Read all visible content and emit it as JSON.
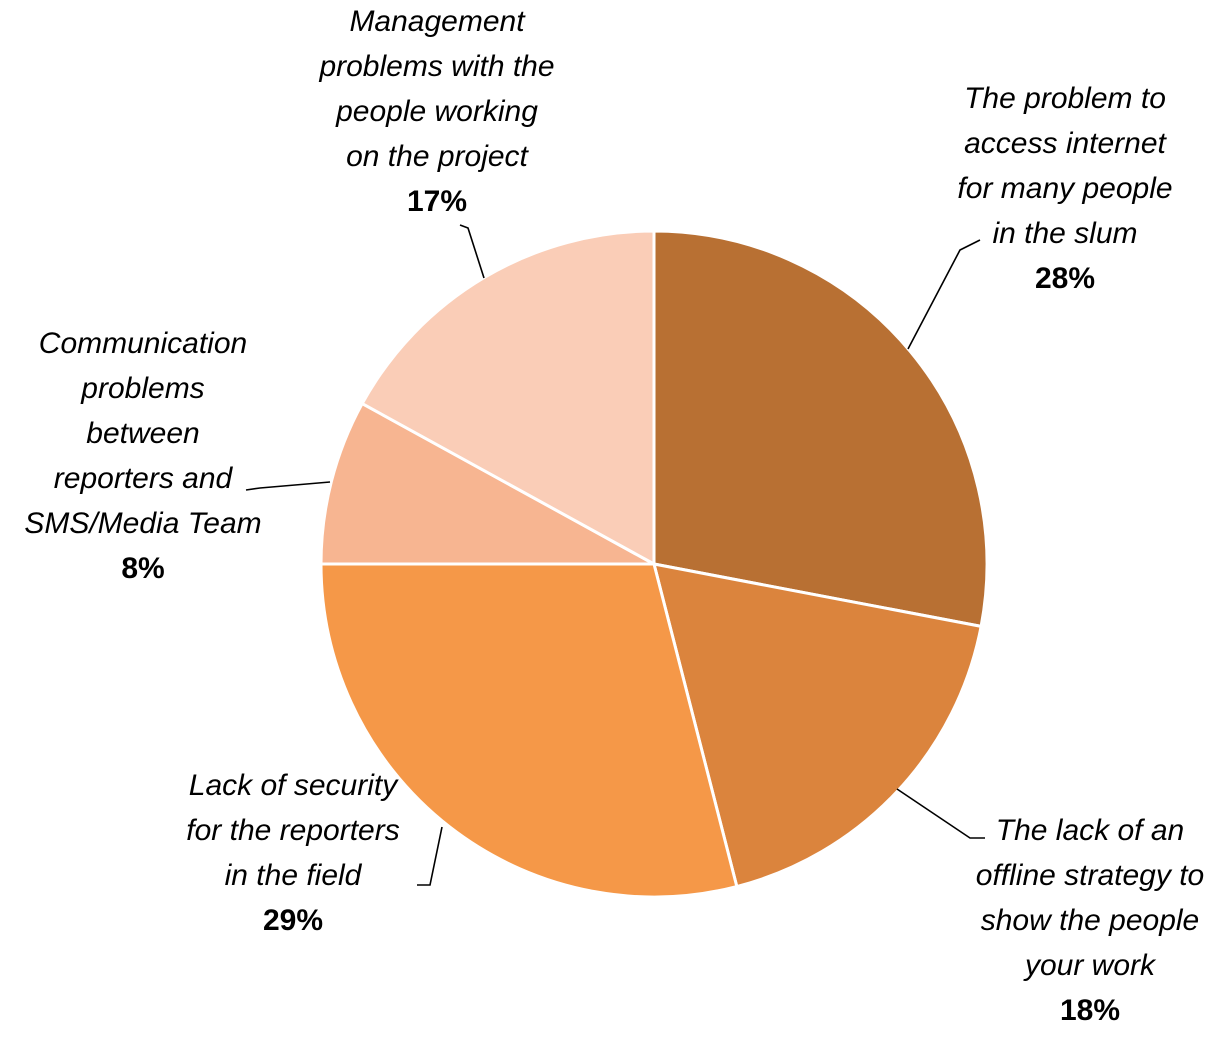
{
  "chart_data": {
    "type": "pie",
    "slices": [
      {
        "label": "The problem to access internet for many people in the slum",
        "lines": [
          "The problem to",
          "access internet",
          "for many people",
          "in the slum"
        ],
        "value": 28,
        "value_label": "28%",
        "color": "#B87033"
      },
      {
        "label": "The lack of an offline strategy to show the people your work",
        "lines": [
          "The lack of an",
          "offline strategy to",
          "show the people",
          "your work"
        ],
        "value": 18,
        "value_label": "18%",
        "color": "#DB843D"
      },
      {
        "label": "Lack of security for the reporters in the field",
        "lines": [
          "Lack of security",
          "for the reporters",
          "in the field"
        ],
        "value": 29,
        "value_label": "29%",
        "color": "#F59848"
      },
      {
        "label": "Communication problems between reporters and SMS/Media Team",
        "lines": [
          "Communication",
          "problems",
          "between",
          "reporters and",
          "SMS/Media Team"
        ],
        "value": 8,
        "value_label": "8%",
        "color": "#F7B591"
      },
      {
        "label": "Management problems with the people working on the project",
        "lines": [
          "Management",
          "problems with the",
          "people working",
          "on the project"
        ],
        "value": 17,
        "value_label": "17%",
        "color": "#FACDB7"
      }
    ]
  }
}
